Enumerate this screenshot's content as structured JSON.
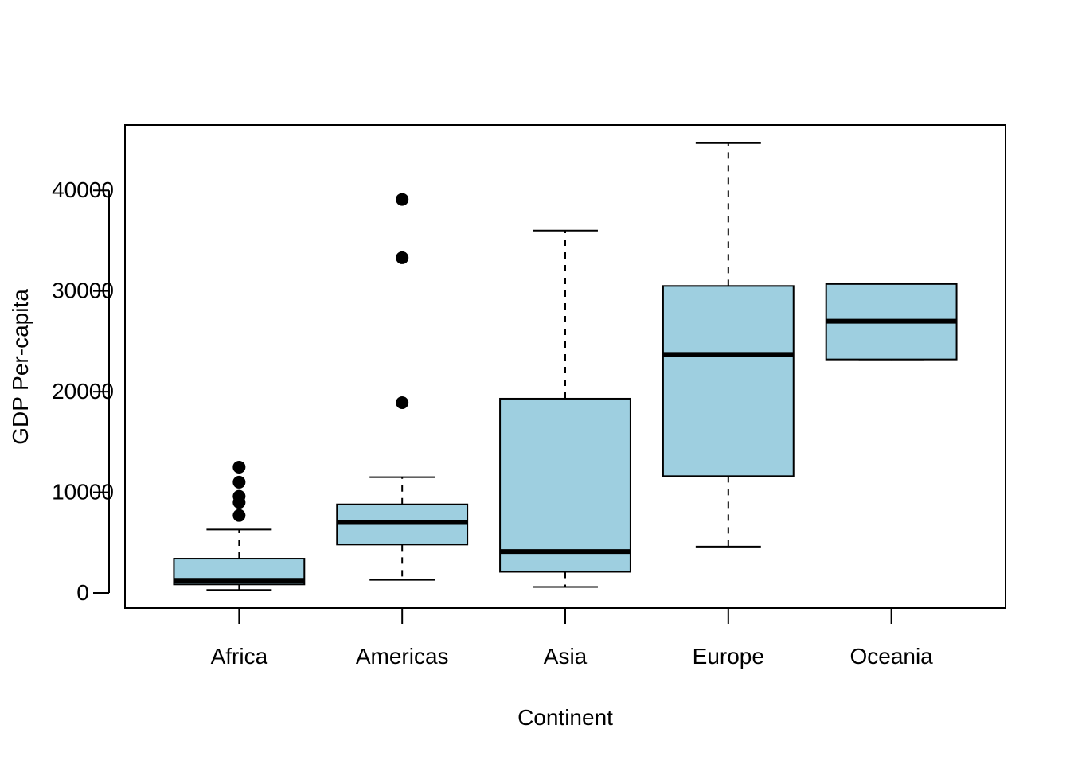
{
  "chart_data": {
    "type": "boxplot",
    "title": "",
    "xlabel": "Continent",
    "ylabel": "GDP Per-capita",
    "ylim": [
      -1500,
      46500
    ],
    "yticks": [
      0,
      10000,
      20000,
      30000,
      40000
    ],
    "ytick_labels": [
      "0",
      "10000",
      "20000",
      "30000",
      "40000"
    ],
    "grid": false,
    "box_color": "#9ecfe0",
    "categories": [
      "Africa",
      "Americas",
      "Asia",
      "Europe",
      "Oceania"
    ],
    "boxes": [
      {
        "category": "Africa",
        "whisker_low": 300,
        "q1": 850,
        "median": 1250,
        "q3": 3400,
        "whisker_high": 6300,
        "outliers": [
          7700,
          9000,
          9600,
          11000,
          12500
        ]
      },
      {
        "category": "Americas",
        "whisker_low": 1300,
        "q1": 4800,
        "median": 7000,
        "q3": 8800,
        "whisker_high": 11500,
        "outliers": [
          18900,
          33300,
          39100
        ]
      },
      {
        "category": "Asia",
        "whisker_low": 600,
        "q1": 2100,
        "median": 4100,
        "q3": 19300,
        "whisker_high": 36000,
        "outliers": []
      },
      {
        "category": "Europe",
        "whisker_low": 4600,
        "q1": 11600,
        "median": 23700,
        "q3": 30500,
        "whisker_high": 44700,
        "outliers": []
      },
      {
        "category": "Oceania",
        "whisker_low": 23200,
        "q1": 23200,
        "median": 27000,
        "q3": 30700,
        "whisker_high": 30700,
        "outliers": []
      }
    ]
  }
}
